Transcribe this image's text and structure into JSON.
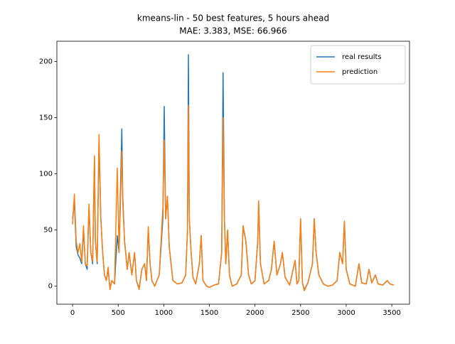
{
  "chart_data": {
    "type": "line",
    "title": "kmeans-lin - 50 best features, 5 hours ahead",
    "subtitle": "MAE: 3.383, MSE: 66.966",
    "x": [
      0,
      20,
      40,
      60,
      80,
      100,
      120,
      140,
      160,
      180,
      200,
      220,
      240,
      250,
      270,
      290,
      310,
      330,
      350,
      370,
      390,
      410,
      430,
      460,
      490,
      510,
      540,
      550,
      570,
      600,
      620,
      650,
      680,
      700,
      730,
      760,
      790,
      810,
      830,
      850,
      870,
      900,
      950,
      990,
      1005,
      1020,
      1040,
      1060,
      1080,
      1100,
      1150,
      1200,
      1240,
      1260,
      1270,
      1280,
      1300,
      1320,
      1350,
      1390,
      1410,
      1430,
      1470,
      1500,
      1550,
      1600,
      1635,
      1650,
      1665,
      1680,
      1700,
      1720,
      1750,
      1800,
      1850,
      1870,
      1900,
      1930,
      1960,
      2000,
      2030,
      2040,
      2060,
      2100,
      2150,
      2180,
      2210,
      2240,
      2280,
      2300,
      2330,
      2380,
      2440,
      2460,
      2480,
      2500,
      2520,
      2540,
      2580,
      2630,
      2650,
      2670,
      2700,
      2750,
      2800,
      2850,
      2900,
      2930,
      2960,
      2980,
      3000,
      3040,
      3100,
      3140,
      3170,
      3220,
      3250,
      3280,
      3320,
      3350,
      3400,
      3450,
      3480,
      3520
    ],
    "series": [
      {
        "name": "real results",
        "color": "#1f77b4",
        "values": [
          60,
          75,
          35,
          28,
          25,
          20,
          50,
          20,
          15,
          70,
          30,
          20,
          115,
          40,
          20,
          130,
          60,
          30,
          10,
          5,
          15,
          -2,
          5,
          2,
          45,
          30,
          140,
          80,
          40,
          15,
          30,
          10,
          30,
          5,
          -2,
          15,
          20,
          5,
          50,
          20,
          5,
          0,
          10,
          60,
          160,
          60,
          80,
          35,
          20,
          5,
          2,
          3,
          10,
          50,
          206,
          60,
          30,
          8,
          2,
          20,
          45,
          5,
          0,
          -1,
          1,
          2,
          30,
          190,
          60,
          20,
          50,
          10,
          0,
          2,
          10,
          53,
          40,
          10,
          2,
          5,
          40,
          75,
          20,
          2,
          5,
          15,
          40,
          10,
          20,
          30,
          8,
          1,
          23,
          2,
          5,
          60,
          3,
          -3,
          3,
          20,
          60,
          30,
          10,
          2,
          0,
          1,
          5,
          30,
          20,
          57,
          15,
          2,
          0,
          20,
          3,
          2,
          15,
          3,
          10,
          2,
          1,
          5,
          2,
          1
        ]
      },
      {
        "name": "prediction",
        "color": "#ff7f0e",
        "values": [
          55,
          82,
          40,
          30,
          38,
          22,
          54,
          20,
          18,
          73,
          30,
          22,
          116,
          40,
          22,
          135,
          60,
          30,
          10,
          5,
          17,
          -3,
          5,
          2,
          105,
          30,
          120,
          75,
          40,
          15,
          30,
          10,
          30,
          5,
          -3,
          15,
          20,
          5,
          53,
          20,
          5,
          0,
          10,
          70,
          130,
          60,
          80,
          35,
          20,
          5,
          2,
          3,
          10,
          50,
          161,
          60,
          30,
          8,
          2,
          20,
          45,
          5,
          0,
          -1,
          1,
          2,
          30,
          150,
          60,
          20,
          50,
          10,
          0,
          2,
          10,
          54,
          40,
          10,
          2,
          5,
          40,
          76,
          20,
          2,
          5,
          15,
          40,
          10,
          20,
          30,
          8,
          1,
          23,
          2,
          5,
          60,
          3,
          -4,
          3,
          20,
          60,
          30,
          10,
          2,
          0,
          1,
          5,
          30,
          20,
          58,
          15,
          2,
          0,
          20,
          3,
          2,
          15,
          3,
          10,
          2,
          1,
          5,
          2,
          1
        ]
      }
    ],
    "xlim": [
      -172,
      3694
    ],
    "ylim": [
      -16,
      218
    ],
    "xticks": [
      0,
      500,
      1000,
      1500,
      2000,
      2500,
      3000,
      3500
    ],
    "yticks": [
      0,
      50,
      100,
      150,
      200
    ],
    "legend": "upper right"
  }
}
